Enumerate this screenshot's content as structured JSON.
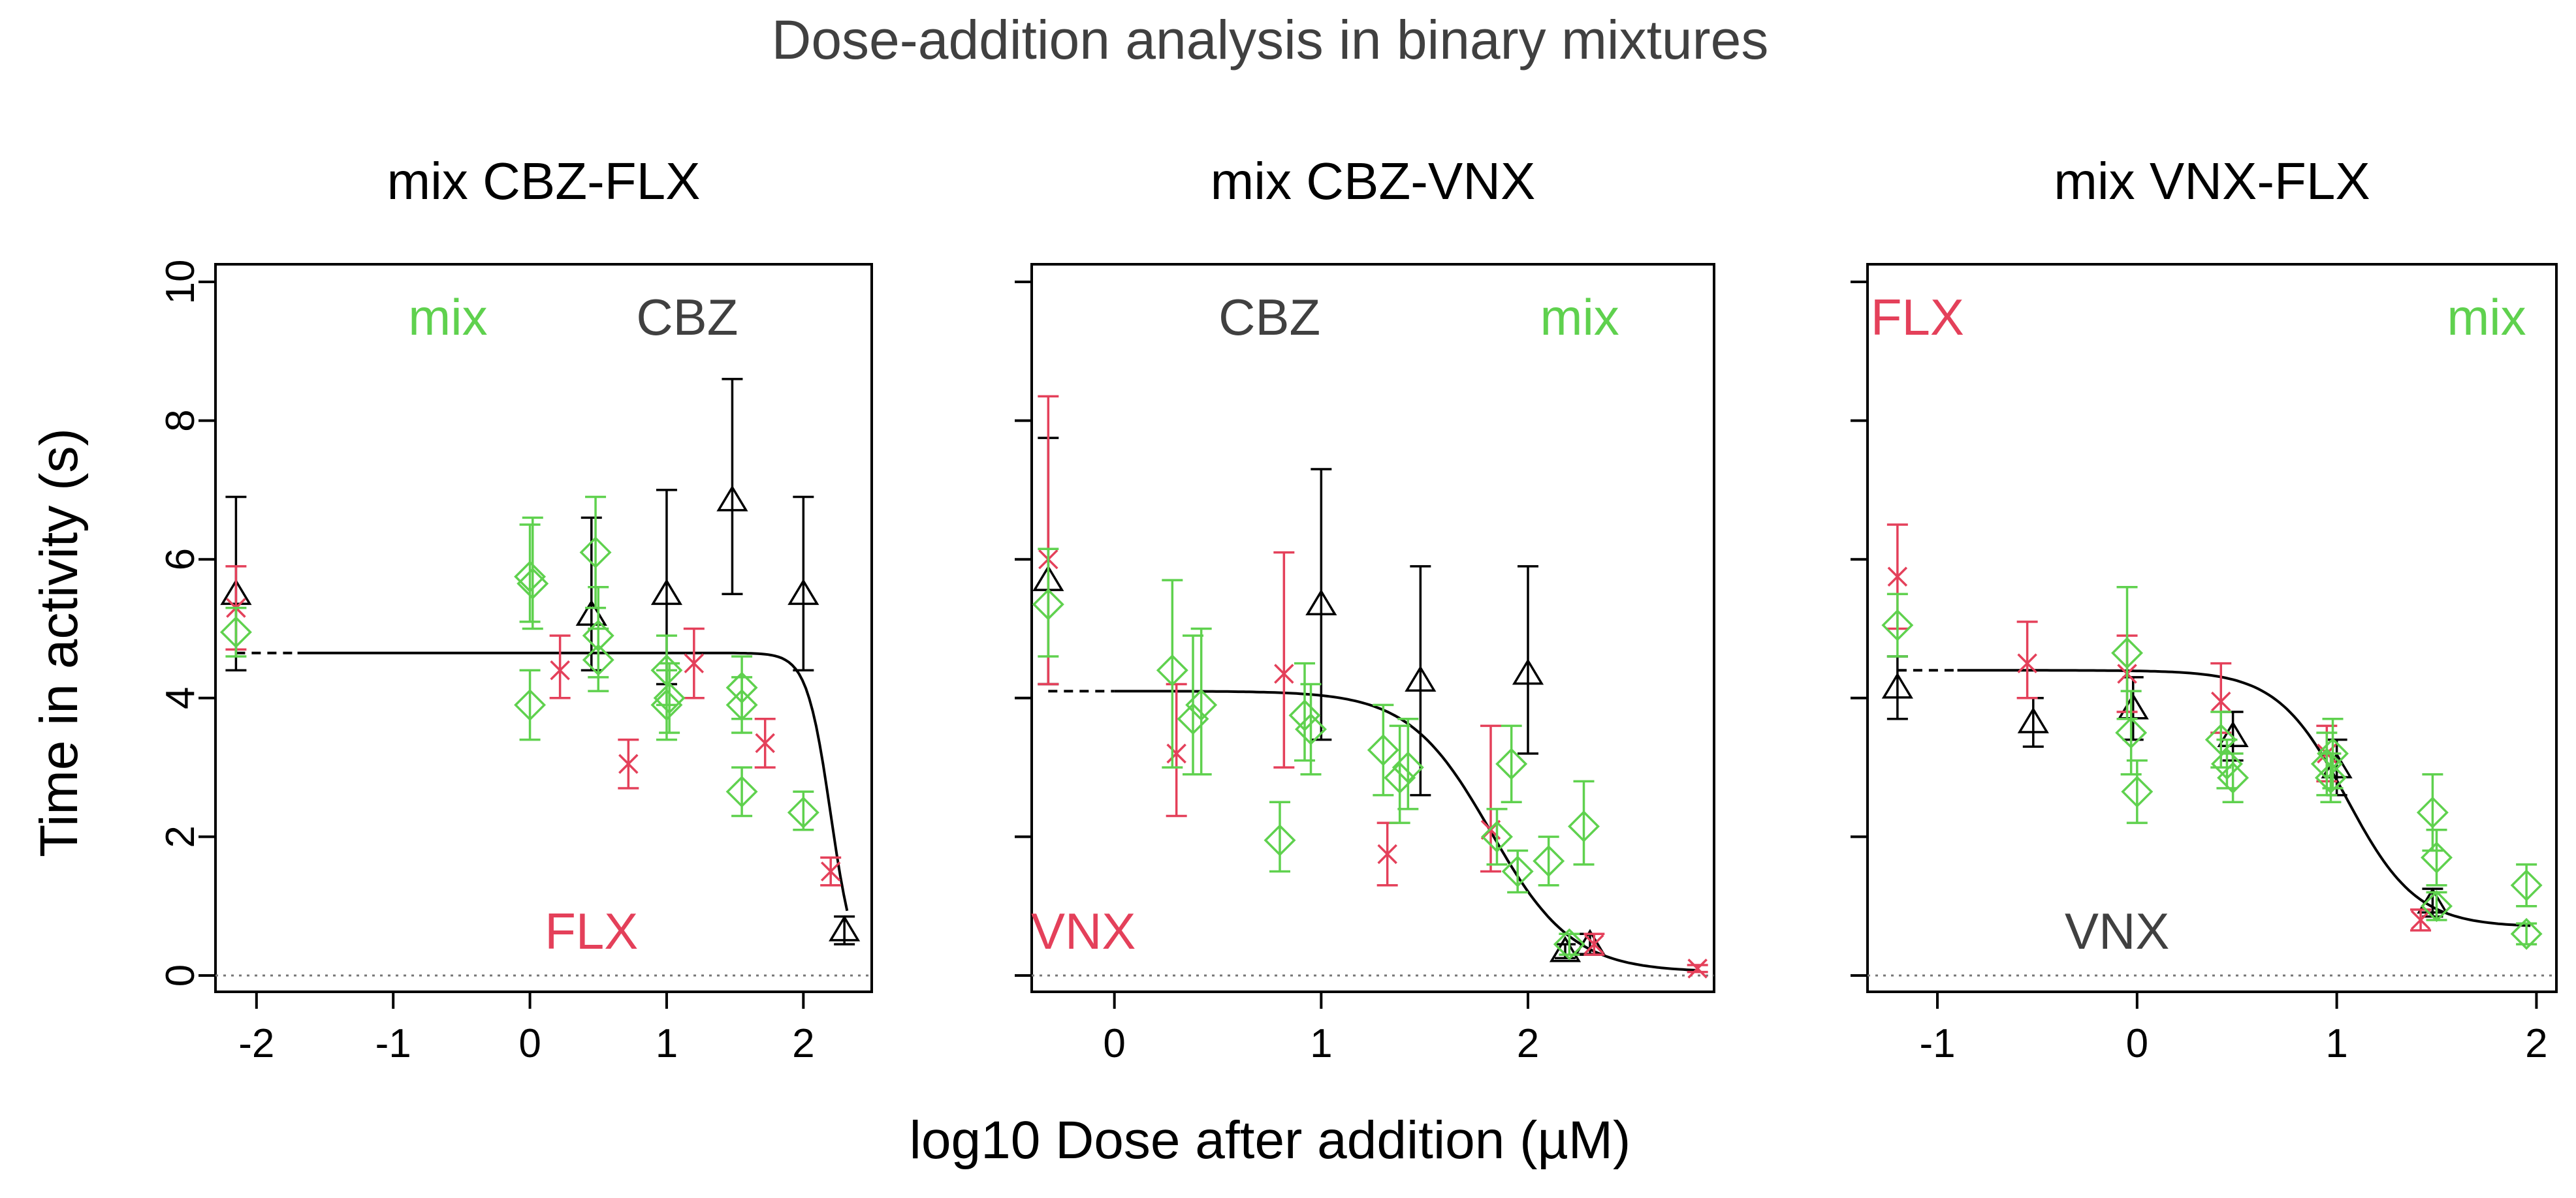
{
  "figure": {
    "title": "Dose-addition analysis in binary mixtures",
    "xlabel": "log10 Dose after addition (µM)",
    "ylabel": "Time in activity (s)",
    "colors": {
      "black": "#000000",
      "red": "#e4405a",
      "green": "#5fd14e",
      "text_gray": "#404040",
      "baseline": "#777777"
    }
  },
  "chart_data": [
    {
      "type": "scatter",
      "title": "mix CBZ-FLX",
      "xlim": [
        -2.3,
        2.5
      ],
      "ylim": [
        0,
        10
      ],
      "xticks": [
        -2,
        -1,
        0,
        1,
        2
      ],
      "xtick_labels": [
        "-2",
        "-1",
        "0",
        "1",
        "2"
      ],
      "yticks": [
        0,
        2,
        4,
        6,
        8,
        10
      ],
      "ytick_labels": [
        "0",
        "2",
        "4",
        "6",
        "8",
        "10"
      ],
      "labels": [
        {
          "text": "mix",
          "color": "green",
          "x": -0.6,
          "y": 9.5
        },
        {
          "text": "CBZ",
          "color": "gray",
          "x": 1.15,
          "y": 9.5
        },
        {
          "text": "FLX",
          "color": "red",
          "x": 0.45,
          "y": 0.65
        }
      ],
      "series": [
        {
          "name": "CBZ",
          "marker": "triangle",
          "color": "black",
          "points": [
            [
              -2.15,
              5.5,
              4.4,
              6.9
            ],
            [
              0.45,
              5.2,
              4.4,
              6.6
            ],
            [
              1.0,
              5.5,
              4.2,
              7.0
            ],
            [
              1.48,
              6.85,
              5.5,
              8.6
            ],
            [
              2.0,
              5.5,
              4.4,
              6.9
            ],
            [
              2.3,
              0.65,
              0.45,
              0.85
            ]
          ]
        },
        {
          "name": "FLX",
          "marker": "x",
          "color": "red",
          "points": [
            [
              -2.15,
              5.3,
              4.7,
              5.9
            ],
            [
              0.22,
              4.4,
              4.0,
              4.9
            ],
            [
              0.72,
              3.05,
              2.7,
              3.4
            ],
            [
              1.2,
              4.5,
              4.0,
              5.0
            ],
            [
              1.72,
              3.35,
              3.0,
              3.7
            ],
            [
              2.2,
              1.5,
              1.3,
              1.7
            ]
          ]
        },
        {
          "name": "mix",
          "marker": "diamond",
          "color": "green",
          "points": [
            [
              -2.15,
              4.95,
              4.6,
              5.3
            ],
            [
              0.0,
              5.75,
              5.1,
              6.5
            ],
            [
              0.02,
              5.65,
              5.0,
              6.6
            ],
            [
              0.0,
              3.9,
              3.4,
              4.4
            ],
            [
              0.48,
              6.1,
              5.3,
              6.9
            ],
            [
              0.5,
              4.9,
              4.3,
              5.6
            ],
            [
              0.5,
              4.55,
              4.1,
              5.0
            ],
            [
              1.0,
              4.4,
              3.9,
              4.9
            ],
            [
              1.02,
              4.0,
              3.5,
              4.5
            ],
            [
              1.0,
              3.9,
              3.4,
              4.4
            ],
            [
              1.55,
              4.15,
              3.7,
              4.6
            ],
            [
              1.55,
              3.9,
              3.5,
              4.3
            ],
            [
              1.55,
              2.65,
              2.3,
              3.0
            ],
            [
              2.0,
              2.35,
              2.1,
              2.65
            ]
          ]
        }
      ],
      "curve": {
        "top": 4.65,
        "bottom": 0,
        "ec50_log": 2.2,
        "hill": 5,
        "solid_from": -1.7,
        "x_from": -2.15,
        "x_to": 2.32
      }
    },
    {
      "type": "scatter",
      "title": "mix CBZ-VNX",
      "xlim": [
        -0.4,
        2.9
      ],
      "ylim": [
        0,
        10
      ],
      "xticks": [
        0,
        1,
        2
      ],
      "xtick_labels": [
        "0",
        "1",
        "2"
      ],
      "yticks": [
        0,
        2,
        4,
        6,
        8,
        10
      ],
      "ytick_labels": [],
      "labels": [
        {
          "text": "CBZ",
          "color": "gray",
          "x": 0.75,
          "y": 9.5
        },
        {
          "text": "mix",
          "color": "green",
          "x": 2.25,
          "y": 9.5
        },
        {
          "text": "VNX",
          "color": "red",
          "x": -0.15,
          "y": 0.65
        }
      ],
      "series": [
        {
          "name": "CBZ",
          "marker": "triangle",
          "color": "black",
          "points": [
            [
              -0.32,
              5.7,
              4.2,
              7.75
            ],
            [
              1.0,
              5.35,
              3.4,
              7.3
            ],
            [
              1.48,
              4.25,
              2.6,
              5.9
            ],
            [
              2.0,
              4.35,
              3.2,
              5.9
            ],
            [
              2.18,
              0.35,
              0.25,
              0.45
            ],
            [
              2.3,
              0.45,
              0.3,
              0.6
            ]
          ]
        },
        {
          "name": "VNX",
          "marker": "x",
          "color": "red",
          "points": [
            [
              -0.32,
              6.0,
              4.2,
              8.35
            ],
            [
              0.3,
              3.2,
              2.3,
              4.2
            ],
            [
              0.82,
              4.35,
              3.0,
              6.1
            ],
            [
              1.32,
              1.75,
              1.3,
              2.2
            ],
            [
              1.82,
              2.1,
              1.5,
              3.6
            ],
            [
              2.32,
              0.45,
              0.3,
              0.6
            ],
            [
              2.82,
              0.1,
              0.05,
              0.15
            ]
          ]
        },
        {
          "name": "mix",
          "marker": "diamond",
          "color": "green",
          "points": [
            [
              -0.32,
              5.35,
              4.6,
              6.15
            ],
            [
              0.28,
              4.4,
              3.0,
              5.7
            ],
            [
              0.38,
              3.7,
              2.9,
              4.9
            ],
            [
              0.42,
              3.9,
              2.9,
              5.0
            ],
            [
              0.8,
              1.95,
              1.5,
              2.5
            ],
            [
              0.92,
              3.75,
              3.1,
              4.5
            ],
            [
              0.95,
              3.55,
              2.9,
              4.2
            ],
            [
              1.3,
              3.25,
              2.6,
              3.9
            ],
            [
              1.38,
              2.85,
              2.2,
              3.6
            ],
            [
              1.42,
              3.0,
              2.4,
              3.7
            ],
            [
              1.85,
              2.0,
              1.6,
              2.4
            ],
            [
              1.92,
              3.05,
              2.5,
              3.6
            ],
            [
              1.95,
              1.5,
              1.2,
              1.8
            ],
            [
              2.1,
              1.65,
              1.3,
              2.0
            ],
            [
              2.2,
              0.45,
              0.3,
              0.6
            ],
            [
              2.27,
              2.15,
              1.6,
              2.8
            ]
          ]
        }
      ],
      "curve": {
        "top": 4.1,
        "bottom": 0.05,
        "ec50_log": 1.82,
        "hill": 2.2,
        "solid_from": 0.0,
        "x_from": -0.32,
        "x_to": 2.82
      }
    },
    {
      "type": "scatter",
      "title": "mix VNX-FLX",
      "xlim": [
        -1.35,
        2.1
      ],
      "ylim": [
        0,
        10
      ],
      "xticks": [
        -1,
        0,
        1,
        2
      ],
      "xtick_labels": [
        "-1",
        "0",
        "1",
        "2"
      ],
      "yticks": [
        0,
        2,
        4,
        6,
        8,
        10
      ],
      "ytick_labels": [],
      "labels": [
        {
          "text": "FLX",
          "color": "red",
          "x": -1.1,
          "y": 9.5
        },
        {
          "text": "mix",
          "color": "green",
          "x": 1.75,
          "y": 9.5
        },
        {
          "text": "VNX",
          "color": "gray",
          "x": -0.1,
          "y": 0.65
        }
      ],
      "series": [
        {
          "name": "VNX",
          "marker": "triangle",
          "color": "black",
          "points": [
            [
              -1.2,
              4.15,
              3.7,
              4.6
            ],
            [
              -0.52,
              3.65,
              3.3,
              4.0
            ],
            [
              -0.02,
              3.85,
              3.4,
              4.3
            ],
            [
              0.48,
              3.45,
              3.1,
              3.8
            ],
            [
              1.0,
              3.0,
              2.6,
              3.4
            ],
            [
              1.48,
              1.05,
              0.85,
              1.25
            ]
          ]
        },
        {
          "name": "FLX",
          "marker": "x",
          "color": "red",
          "points": [
            [
              -1.2,
              5.75,
              5.0,
              6.5
            ],
            [
              -0.55,
              4.5,
              4.0,
              5.1
            ],
            [
              -0.05,
              4.35,
              3.8,
              4.9
            ],
            [
              0.42,
              3.95,
              3.5,
              4.5
            ],
            [
              0.95,
              3.2,
              2.8,
              3.6
            ],
            [
              1.42,
              0.8,
              0.65,
              0.95
            ]
          ]
        },
        {
          "name": "mix",
          "marker": "diamond",
          "color": "green",
          "points": [
            [
              -1.2,
              5.05,
              4.6,
              5.5
            ],
            [
              -0.05,
              4.65,
              3.7,
              5.6
            ],
            [
              -0.03,
              3.5,
              2.9,
              4.1
            ],
            [
              0.0,
              2.65,
              2.2,
              3.1
            ],
            [
              0.42,
              3.4,
              3.0,
              3.8
            ],
            [
              0.45,
              3.05,
              2.7,
              3.4
            ],
            [
              0.48,
              2.85,
              2.5,
              3.2
            ],
            [
              0.95,
              3.05,
              2.6,
              3.5
            ],
            [
              0.97,
              2.85,
              2.5,
              3.2
            ],
            [
              0.98,
              3.2,
              2.7,
              3.7
            ],
            [
              1.48,
              2.35,
              1.8,
              2.9
            ],
            [
              1.5,
              1.7,
              1.3,
              2.1
            ],
            [
              1.5,
              1.0,
              0.8,
              1.2
            ],
            [
              1.95,
              1.3,
              1.0,
              1.6
            ],
            [
              1.95,
              0.6,
              0.45,
              0.75
            ]
          ]
        }
      ],
      "curve": {
        "top": 4.4,
        "bottom": 0.7,
        "ec50_log": 1.05,
        "hill": 2.5,
        "solid_from": -0.9,
        "x_from": -1.2,
        "x_to": 1.97
      }
    }
  ]
}
